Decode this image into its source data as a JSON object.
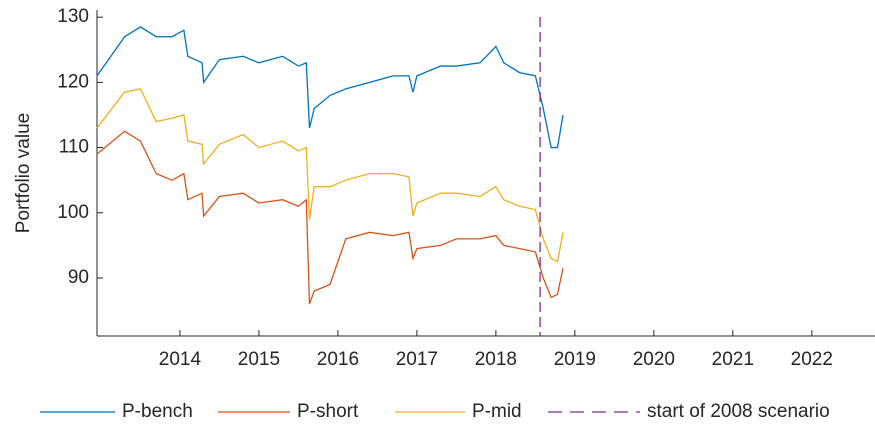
{
  "chart_data": {
    "type": "line",
    "y_label": "Portfolio value",
    "x": [
      2012.95,
      2013.3,
      2013.5,
      2013.7,
      2013.9,
      2014.05,
      2014.1,
      2014.28,
      2014.3,
      2014.5,
      2014.8,
      2015.0,
      2015.3,
      2015.5,
      2015.6,
      2015.64,
      2015.7,
      2015.9,
      2016.1,
      2016.4,
      2016.7,
      2016.9,
      2016.95,
      2017.0,
      2017.3,
      2017.5,
      2017.8,
      2018.0,
      2018.1,
      2018.3,
      2018.5,
      2018.6,
      2018.7,
      2018.78,
      2018.85
    ],
    "series": [
      {
        "name": "P-bench",
        "color": "#0072bd",
        "values": [
          121,
          127,
          128.5,
          127,
          127,
          128,
          124,
          123,
          120,
          123.5,
          124,
          123,
          124,
          122.5,
          123,
          113,
          116,
          118,
          119,
          120,
          121,
          121,
          118.5,
          121,
          122.5,
          122.5,
          123,
          125.5,
          123,
          121.5,
          121,
          116,
          110,
          110,
          115
        ]
      },
      {
        "name": "P-short",
        "color": "#d95319",
        "values": [
          109,
          112.5,
          111,
          106,
          105,
          106,
          102,
          103,
          99.5,
          102.5,
          103,
          101.5,
          102,
          101,
          102,
          86,
          88,
          89,
          96,
          97,
          96.5,
          97,
          93,
          94.5,
          95,
          96,
          96,
          96.5,
          95,
          94.5,
          94,
          90,
          87,
          87.5,
          91.5
        ]
      },
      {
        "name": "P-mid",
        "color": "#edb120",
        "values": [
          113,
          118.5,
          119,
          114,
          114.5,
          115,
          111,
          110.5,
          107.5,
          110.5,
          112,
          110,
          111,
          109.5,
          110,
          99,
          104,
          104,
          105,
          106,
          106,
          105.5,
          99.5,
          101.5,
          103,
          103,
          102.5,
          104,
          102,
          101,
          100.5,
          96,
          93,
          92.5,
          97
        ]
      }
    ],
    "vline": {
      "x": 2018.56,
      "name": "start of 2008 scenario",
      "color": "#7e2f8e"
    },
    "xlim": [
      2012.95,
      2022.8
    ],
    "xticks": [
      2014,
      2015,
      2016,
      2017,
      2018,
      2019,
      2020,
      2021,
      2022
    ],
    "ylim": [
      81.1,
      131.1
    ],
    "yticks": [
      90,
      100,
      110,
      120,
      130
    ],
    "legend": "bottom"
  }
}
